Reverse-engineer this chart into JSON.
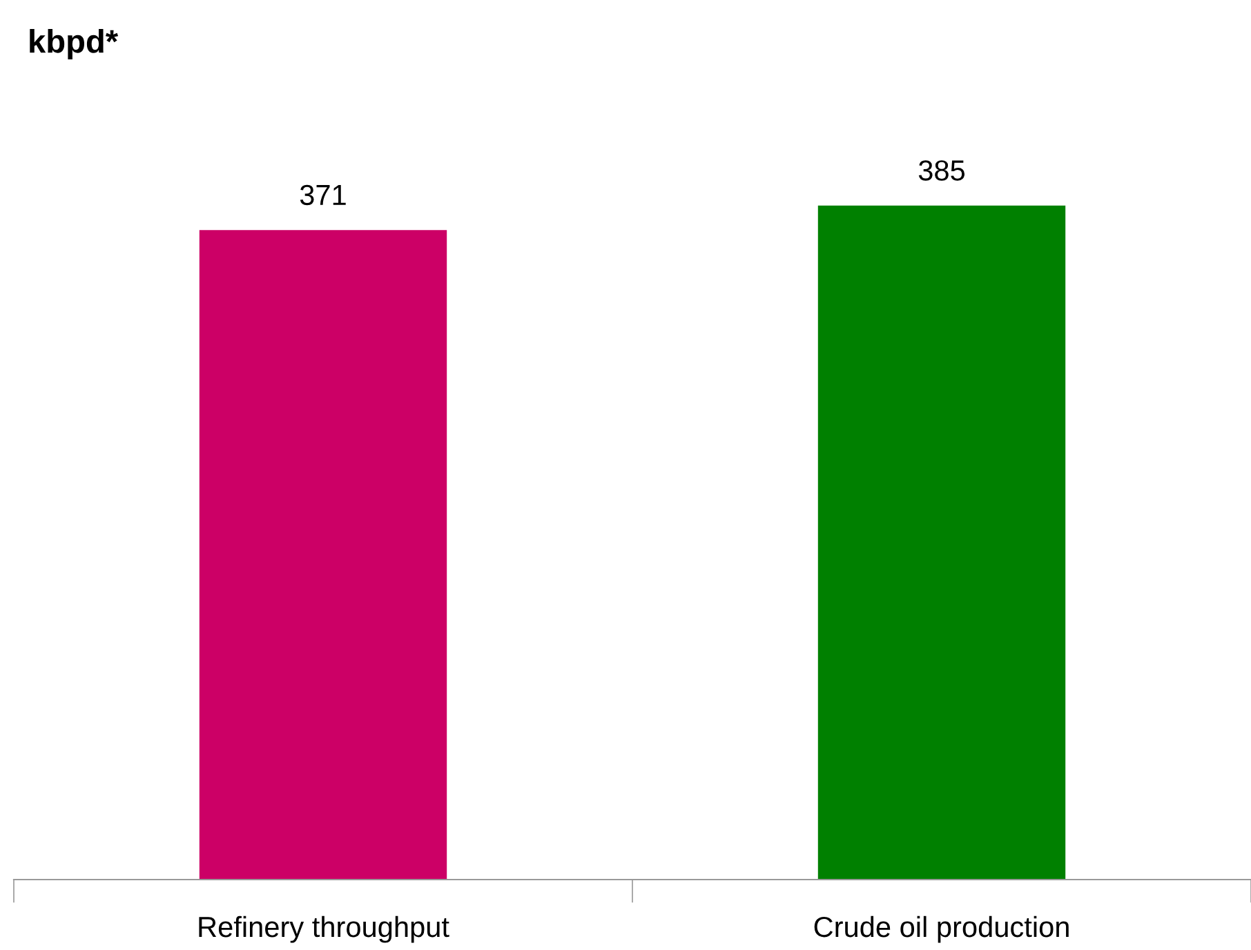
{
  "chart_data": {
    "type": "bar",
    "title": "kbpd*",
    "categories": [
      "Refinery throughput",
      "Crude oil production"
    ],
    "values": [
      371,
      385
    ],
    "colors": [
      "#cc0066",
      "#008000"
    ],
    "data_labels": true,
    "tick_labels": "x",
    "grid": false,
    "legend": false
  }
}
